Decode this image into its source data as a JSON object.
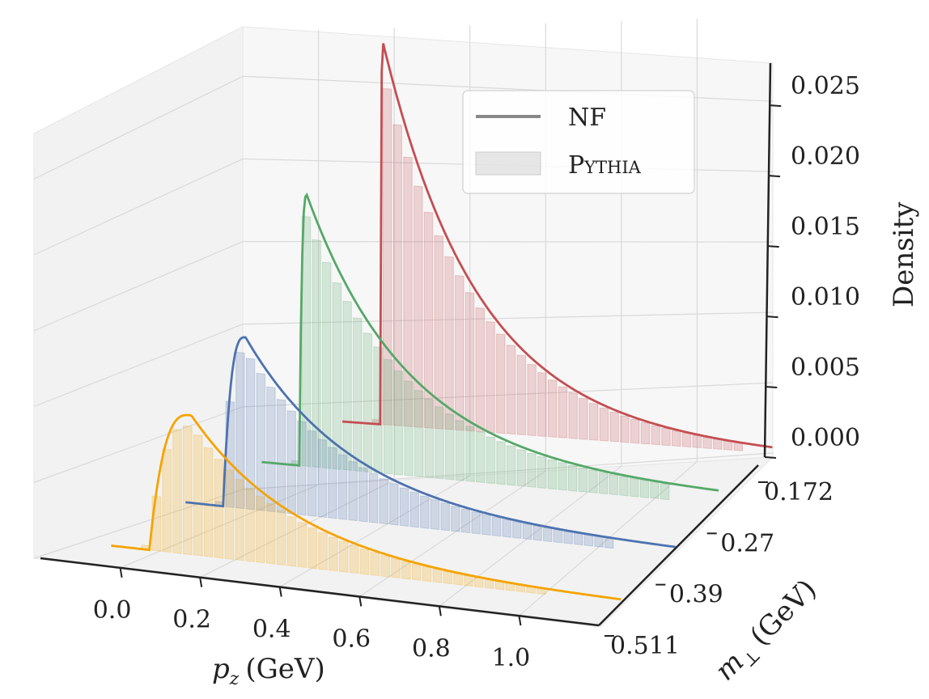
{
  "chart_data": {
    "type": "3d-waterfall (histogram + line)",
    "xlabel_main": "p",
    "xlabel_sub": "z",
    "xlabel_unit": "(GeV)",
    "ylabel_main": "m",
    "ylabel_sub": "⊥",
    "ylabel_unit": "(GeV)",
    "zlabel": "Density",
    "x_ticks": [
      "0.0",
      "0.2",
      "0.4",
      "0.6",
      "0.8",
      "1.0"
    ],
    "y_ticks": [
      "0.172",
      "0.27",
      "0.39",
      "0.511"
    ],
    "z_ticks": [
      "0.000",
      "0.005",
      "0.010",
      "0.015",
      "0.020",
      "0.025"
    ],
    "xlim": [
      -0.2,
      1.2
    ],
    "zlim": [
      0,
      0.028
    ],
    "legend": [
      {
        "label": "NF",
        "style": "line"
      },
      {
        "label": "Pythia",
        "style": "bar",
        "smallcaps": true
      }
    ],
    "series": [
      {
        "m_perp": "0.172",
        "color": "#c44e52",
        "threshold": 0.163,
        "peak_x": 0.17,
        "peak_density": 0.0272,
        "tail_end": 1.2,
        "tail_density": 0.0
      },
      {
        "m_perp": "0.27",
        "color": "#55a868",
        "threshold": 0.112,
        "peak_x": 0.132,
        "peak_density": 0.0194,
        "tail_end": 1.23,
        "tail_density": 0.0007
      },
      {
        "m_perp": "0.39",
        "color": "#4c72b0",
        "threshold": 0.075,
        "peak_x": 0.135,
        "peak_density": 0.0124,
        "tail_end": 1.28,
        "tail_density": 0.0004
      },
      {
        "m_perp": "0.511",
        "color": "#f5a300",
        "threshold": 0.06,
        "peak_x": 0.17,
        "peak_density": 0.0103,
        "tail_end": 1.3,
        "tail_density": 0.0001
      }
    ]
  }
}
